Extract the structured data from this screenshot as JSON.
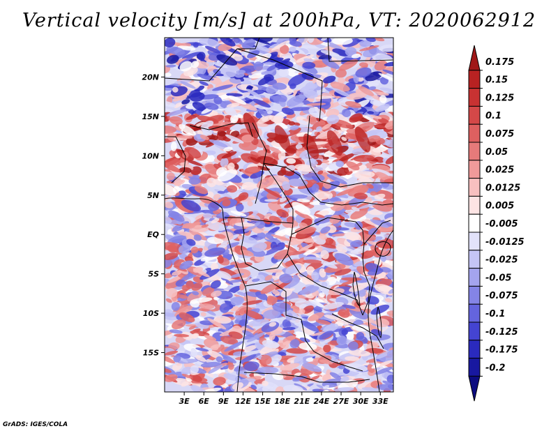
{
  "title": "Vertical velocity [m/s] at 200hPa, VT: 2020062912",
  "credit": "GrADS: IGES/COLA",
  "map": {
    "lon_range": [
      0,
      35
    ],
    "lat_range": [
      -20,
      25
    ],
    "lon_ticks": [
      "3E",
      "6E",
      "9E",
      "12E",
      "15E",
      "18E",
      "21E",
      "24E",
      "27E",
      "30E",
      "33E"
    ],
    "lat_ticks": [
      "20N",
      "15N",
      "10N",
      "5N",
      "EQ",
      "5S",
      "10S",
      "15S"
    ]
  },
  "colorbar": {
    "labels": [
      "0.175",
      "0.15",
      "0.125",
      "0.1",
      "0.075",
      "0.05",
      "0.025",
      "0.0125",
      "0.005",
      "-0.005",
      "-0.0125",
      "-0.025",
      "-0.05",
      "-0.075",
      "-0.1",
      "-0.125",
      "-0.175",
      "-0.2"
    ],
    "colors": [
      "#a01818",
      "#b82222",
      "#c83232",
      "#d44848",
      "#de6060",
      "#e67a7a",
      "#f09a9a",
      "#f8c0c0",
      "#fde4e4",
      "#ffffff",
      "#e2e2fa",
      "#c4c4f6",
      "#a4a4ee",
      "#8484e6",
      "#6464de",
      "#4444d2",
      "#2a2abe",
      "#1818a0",
      "#0c0c80"
    ]
  }
}
